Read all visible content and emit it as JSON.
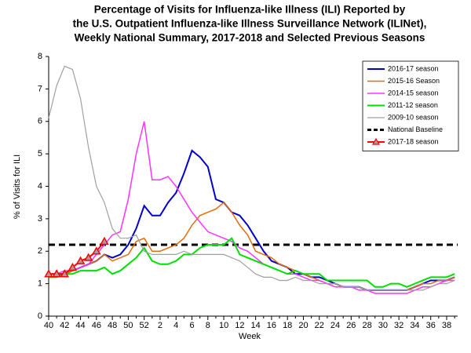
{
  "chart_data": {
    "type": "line",
    "title": [
      "Percentage of Visits for Influenza-like Illness (ILI) Reported by",
      "the U.S. Outpatient Influenza-like Illness Surveillance Network (ILINet),",
      "Weekly National Summary, 2017-2018 and Selected Previous Seasons"
    ],
    "y_label": "% of Visits for ILI",
    "x_label": "Week",
    "categories": [
      40,
      null,
      42,
      null,
      44,
      null,
      46,
      null,
      48,
      null,
      50,
      null,
      52,
      null,
      2,
      null,
      4,
      null,
      6,
      null,
      8,
      null,
      10,
      null,
      12,
      null,
      14,
      null,
      16,
      null,
      18,
      null,
      20,
      null,
      22,
      null,
      24,
      null,
      26,
      null,
      28,
      null,
      30,
      null,
      32,
      null,
      34,
      null,
      36,
      null,
      38,
      null
    ],
    "ylim": [
      0,
      8
    ],
    "yticks": [
      0,
      1,
      2,
      3,
      4,
      5,
      6,
      7,
      8
    ],
    "legend": "upper right",
    "series": [
      {
        "name": "2016-17 season",
        "color": "#0000cc",
        "width": 2,
        "values": [
          1.3,
          1.3,
          1.3,
          1.4,
          1.5,
          1.6,
          1.7,
          1.9,
          1.8,
          1.9,
          2.2,
          2.7,
          3.4,
          3.1,
          3.1,
          3.5,
          3.8,
          4.4,
          5.1,
          4.9,
          4.6,
          3.6,
          3.5,
          3.2,
          3.1,
          2.8,
          2.4,
          2.0,
          1.7,
          1.6,
          1.5,
          1.3,
          1.3,
          1.2,
          1.2,
          1.1,
          1.0,
          0.9,
          0.9,
          0.9,
          0.8,
          0.8,
          0.8,
          0.8,
          0.8,
          0.8,
          0.9,
          1.0,
          1.1,
          1.1,
          1.1,
          1.2
        ]
      },
      {
        "name": "2015-16 Season",
        "color": "#e36c09",
        "width": 1.5,
        "values": [
          1.3,
          1.3,
          1.3,
          1.4,
          1.5,
          1.6,
          1.7,
          1.9,
          1.7,
          1.8,
          1.9,
          2.3,
          2.4,
          2.0,
          2.0,
          2.1,
          2.2,
          2.4,
          2.8,
          3.1,
          3.2,
          3.3,
          3.5,
          3.2,
          2.8,
          2.5,
          2.0,
          1.9,
          1.8,
          1.6,
          1.5,
          1.4,
          1.3,
          1.2,
          1.1,
          1.0,
          1.0,
          0.9,
          0.9,
          0.9,
          0.8,
          0.8,
          0.8,
          0.8,
          0.8,
          0.8,
          0.9,
          1.0,
          1.0,
          1.1,
          1.1,
          1.2
        ]
      },
      {
        "name": "2014-15 season",
        "color": "#ff33ff",
        "width": 1.5,
        "values": [
          1.3,
          1.3,
          1.4,
          1.4,
          1.5,
          1.6,
          1.9,
          2.2,
          2.5,
          2.6,
          3.6,
          5.0,
          6.0,
          4.2,
          4.2,
          4.3,
          4.0,
          3.6,
          3.2,
          2.9,
          2.6,
          2.5,
          2.4,
          2.3,
          2.1,
          2.0,
          1.8,
          1.6,
          1.5,
          1.4,
          1.3,
          1.3,
          1.2,
          1.1,
          1.1,
          1.0,
          0.9,
          0.9,
          0.9,
          0.8,
          0.8,
          0.7,
          0.7,
          0.7,
          0.7,
          0.7,
          0.8,
          0.9,
          0.9,
          1.0,
          1.1,
          1.1
        ]
      },
      {
        "name": "2011-12 season",
        "color": "#00dd00",
        "width": 2,
        "values": [
          1.2,
          1.2,
          1.3,
          1.3,
          1.4,
          1.4,
          1.4,
          1.5,
          1.3,
          1.4,
          1.6,
          1.8,
          2.1,
          1.7,
          1.6,
          1.6,
          1.7,
          1.9,
          1.9,
          2.1,
          2.2,
          2.2,
          2.2,
          2.4,
          1.9,
          1.8,
          1.7,
          1.6,
          1.5,
          1.4,
          1.3,
          1.4,
          1.3,
          1.3,
          1.3,
          1.1,
          1.1,
          1.1,
          1.1,
          1.1,
          1.1,
          0.9,
          0.9,
          1.0,
          1.0,
          0.9,
          1.0,
          1.1,
          1.2,
          1.2,
          1.2,
          1.3
        ]
      },
      {
        "name": "2009-10 season",
        "color": "#a0a0a0",
        "width": 1.2,
        "values": [
          6.1,
          7.1,
          7.7,
          7.6,
          6.7,
          5.2,
          4.0,
          3.5,
          2.7,
          2.4,
          2.4,
          2.5,
          2.0,
          1.9,
          1.9,
          1.9,
          1.9,
          2.0,
          1.9,
          1.9,
          1.9,
          1.9,
          1.9,
          1.8,
          1.7,
          1.5,
          1.3,
          1.2,
          1.2,
          1.1,
          1.1,
          1.2,
          1.1,
          1.1,
          1.0,
          1.0,
          1.0,
          0.9,
          0.9,
          0.9,
          0.8,
          0.8,
          0.8,
          0.8,
          0.8,
          0.8,
          0.8,
          0.8,
          0.9,
          1.0,
          1.0,
          1.1
        ]
      },
      {
        "name": "2017-18 season",
        "color": "#ff0000",
        "width": 2,
        "marker": "triangle",
        "values": [
          1.3,
          1.3,
          1.3,
          1.5,
          1.7,
          1.8,
          2.0,
          2.3,
          null,
          null,
          null,
          null,
          null,
          null,
          null,
          null,
          null,
          null,
          null,
          null,
          null,
          null,
          null,
          null,
          null,
          null,
          null,
          null,
          null,
          null,
          null,
          null,
          null,
          null,
          null,
          null,
          null,
          null,
          null,
          null,
          null,
          null,
          null,
          null,
          null,
          null,
          null,
          null,
          null,
          null,
          null,
          null
        ]
      }
    ],
    "baseline": {
      "name": "National Baseline",
      "value": 2.2,
      "color": "#000000"
    }
  }
}
